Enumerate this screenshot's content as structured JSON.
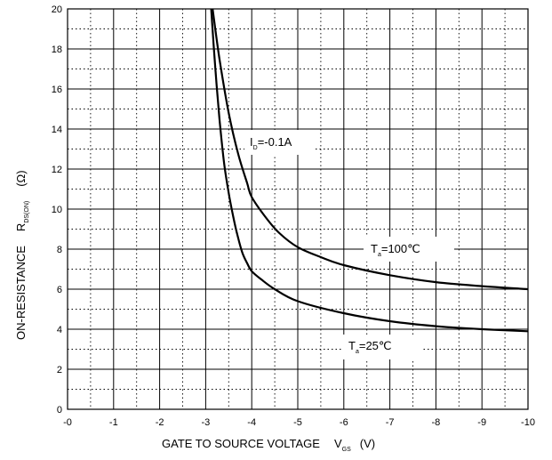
{
  "chart_data": {
    "type": "line",
    "xlabel_main": "GATE TO SOURCE VOLTAGE",
    "xlabel_symbol": "V",
    "xlabel_sub": "GS",
    "xlabel_unit": "(V)",
    "ylabel_main": "ON-RESISTANCE",
    "ylabel_symbol": "R",
    "ylabel_sub": "DS(ON)",
    "ylabel_unit": "(Ω)",
    "x_ticks": [
      "-0",
      "-1",
      "-2",
      "-3",
      "-4",
      "-5",
      "-6",
      "-7",
      "-8",
      "-9",
      "-10"
    ],
    "y_ticks": [
      "0",
      "2",
      "4",
      "6",
      "8",
      "10",
      "12",
      "14",
      "16",
      "18",
      "20"
    ],
    "xlim": [
      0,
      10
    ],
    "ylim": [
      0,
      20
    ],
    "grid": true,
    "condition_main": "I",
    "condition_sub": "D",
    "condition_value": "=-0.1A",
    "series": [
      {
        "name_main": "T",
        "name_sub": "a",
        "name_value": "=25℃",
        "x": [
          3.12,
          3.2,
          3.3,
          3.4,
          3.5,
          3.6,
          3.7,
          3.8,
          3.9,
          4.0,
          4.2,
          4.5,
          5.0,
          6.0,
          7.0,
          8.0,
          9.0,
          10.0
        ],
        "y": [
          20,
          17.3,
          14.5,
          12.3,
          10.8,
          9.6,
          8.6,
          7.8,
          7.3,
          6.9,
          6.5,
          6.0,
          5.4,
          4.8,
          4.4,
          4.15,
          4.0,
          3.9
        ]
      },
      {
        "name_main": "T",
        "name_sub": "a",
        "name_value": "=100℃",
        "x": [
          3.15,
          3.3,
          3.5,
          3.7,
          3.9,
          4.0,
          4.3,
          4.6,
          5.0,
          5.5,
          6.0,
          7.0,
          8.0,
          9.0,
          10.0
        ],
        "y": [
          20,
          17.5,
          14.8,
          12.8,
          11.3,
          10.6,
          9.6,
          8.8,
          8.1,
          7.6,
          7.2,
          6.7,
          6.35,
          6.15,
          6.0
        ]
      }
    ]
  }
}
